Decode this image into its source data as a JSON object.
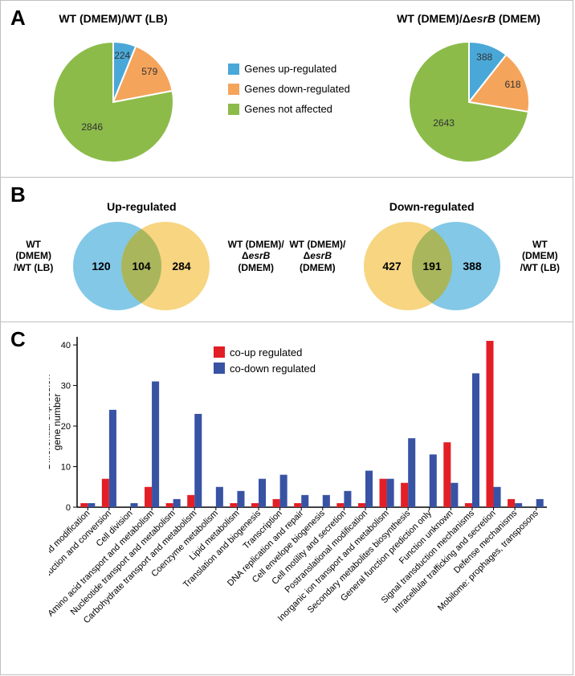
{
  "panelA": {
    "label": "A",
    "pie1": {
      "title": "WT (DMEM)/WT (LB)",
      "slices": [
        {
          "label": "Genes up-regulated",
          "value": 224,
          "color": "#4aa8d8"
        },
        {
          "label": "Genes down-regulated",
          "value": 579,
          "color": "#f5a45b"
        },
        {
          "label": "Genes not affected",
          "value": 2846,
          "color": "#8cbb4a"
        }
      ]
    },
    "pie2": {
      "title": "WT (DMEM)/ΔesrB (DMEM)",
      "slices": [
        {
          "label": "Genes up-regulated",
          "value": 388,
          "color": "#4aa8d8"
        },
        {
          "label": "Genes down-regulated",
          "value": 618,
          "color": "#f5a45b"
        },
        {
          "label": "Genes not affected",
          "value": 2643,
          "color": "#8cbb4a"
        }
      ]
    },
    "legend": [
      {
        "label": "Genes up-regulated",
        "color": "#4aa8d8"
      },
      {
        "label": "Genes down-regulated",
        "color": "#f5a45b"
      },
      {
        "label": "Genes not affected",
        "color": "#8cbb4a"
      }
    ],
    "outline": "#ffffff",
    "value_fontsize": 12,
    "value_color": "#333333"
  },
  "panelB": {
    "label": "B",
    "venn_up": {
      "title": "Up-regulated",
      "left_only": 120,
      "overlap": 104,
      "right_only": 284,
      "left_color": "#7cc5e6",
      "right_color": "#f7d37a",
      "overlap_color": "#a9b65c",
      "left_label": "WT (DMEM)\n/WT (LB)",
      "right_label": "WT (DMEM)/\nΔesrB (DMEM)"
    },
    "venn_down": {
      "title": "Down-regulated",
      "left_only": 427,
      "overlap": 191,
      "right_only": 388,
      "left_color": "#f7d37a",
      "right_color": "#7cc5e6",
      "overlap_color": "#a9b65c",
      "left_label": "WT (DMEM)/\nΔesrB (DMEM)",
      "right_label": "WT (DMEM)\n/WT (LB)"
    },
    "value_fontsize": 14
  },
  "panelC": {
    "label": "C",
    "type": "grouped-bar",
    "y_label": "Differential expression\ngene number",
    "ylim": [
      0,
      42
    ],
    "ytick_step": 10,
    "series": [
      {
        "name": "co-up regulated",
        "color": "#e21f26"
      },
      {
        "name": "co-down regulated",
        "color": "#3853a4"
      }
    ],
    "categories": [
      "RNA procession and modification",
      "Energy production and conversion",
      "Cell division",
      "Amino acid transport and metabolism",
      "Nucleotide transport and metabolism",
      "Carbohydrate transport and metabolism",
      "Coenzyme metabolism",
      "Lipid metabolism",
      "Translation and biogenesis",
      "Transcription",
      "DNA replication and repair",
      "Cell envelope biogenesis",
      "Cell motility and secretion",
      "Postranslational modification",
      "Inorganic ion transport and metabolism",
      "Secondary metabolites biosynthesis",
      "General function prediction only",
      "Function unknown",
      "Signal transduction mechanisms",
      "Intracellular trafficking and secretion",
      "Defense mechanisms",
      "Mobilome: prophages, transposons"
    ],
    "values_up": [
      1,
      7,
      0,
      5,
      1,
      3,
      0,
      1,
      1,
      2,
      1,
      0,
      1,
      1,
      7,
      6,
      0,
      16,
      1,
      41,
      2,
      0
    ],
    "values_down": [
      1,
      24,
      1,
      31,
      2,
      23,
      5,
      4,
      7,
      8,
      3,
      3,
      4,
      9,
      7,
      17,
      13,
      6,
      33,
      5,
      1,
      2
    ],
    "axis_color": "#000000",
    "label_fontsize": 11,
    "tick_fontsize": 11,
    "background": "#ffffff"
  }
}
